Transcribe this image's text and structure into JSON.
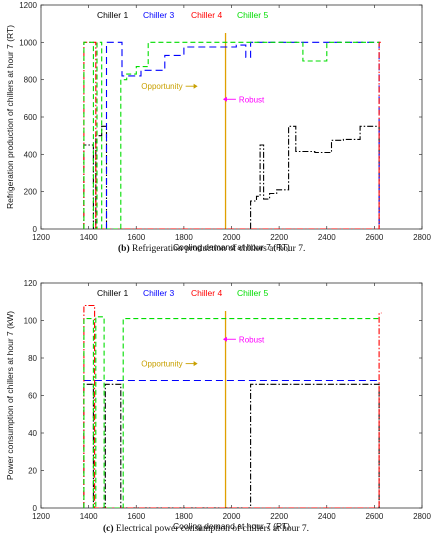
{
  "charts": [
    {
      "type": "line",
      "xlabel": "Cooling demand at hour 7 (RT)",
      "ylabel": "Refrigeration production of chillers at hour 7 (RT)",
      "xlim": [
        1200,
        2800
      ],
      "ylim": [
        0,
        1200
      ],
      "xticks": [
        "1200",
        "1400",
        "1600",
        "1800",
        "2000",
        "2200",
        "2400",
        "2600",
        "2800"
      ],
      "yticks": [
        "0",
        "200",
        "400",
        "600",
        "800",
        "1000",
        "1200"
      ],
      "caption_tag": "(b)",
      "caption_text": " Refrigeration production of chillers at hour 7.",
      "legend": [
        {
          "label": "Chiller 1",
          "color": "#000000"
        },
        {
          "label": "Chiller 3",
          "color": "#0000ff"
        },
        {
          "label": "Chiller 4",
          "color": "#ff0000"
        },
        {
          "label": "Chiller 5",
          "color": "#00dd00"
        }
      ],
      "annotations": [
        {
          "text": "Opportunity",
          "color": "#c8a000",
          "x": 1820,
          "y": 765,
          "arrow": "right"
        },
        {
          "text": "Robust",
          "color": "#ff00ff",
          "x": 1985,
          "y": 695,
          "arrow": "left"
        }
      ],
      "vline": {
        "x": 1975,
        "color": "#e0a000"
      },
      "series": [
        {
          "name": "Chiller 1",
          "color": "#000000",
          "dash": "6,2,1.5,2",
          "points": [
            [
              1380,
              0
            ],
            [
              1380,
              450
            ],
            [
              1420,
              450
            ],
            [
              1420,
              0
            ],
            [
              1430,
              0
            ],
            [
              1430,
              500
            ],
            [
              1455,
              500
            ],
            [
              1455,
              550
            ],
            [
              1475,
              550
            ],
            [
              1475,
              0
            ],
            [
              2080,
              0
            ],
            [
              2080,
              150
            ],
            [
              2105,
              150
            ],
            [
              2105,
              175
            ],
            [
              2120,
              175
            ],
            [
              2120,
              450
            ],
            [
              2135,
              450
            ],
            [
              2135,
              160
            ],
            [
              2160,
              160
            ],
            [
              2160,
              190
            ],
            [
              2190,
              190
            ],
            [
              2190,
              210
            ],
            [
              2240,
              210
            ],
            [
              2240,
              550
            ],
            [
              2270,
              550
            ],
            [
              2270,
              415
            ],
            [
              2350,
              415
            ],
            [
              2350,
              410
            ],
            [
              2420,
              410
            ],
            [
              2420,
              475
            ],
            [
              2470,
              475
            ],
            [
              2470,
              480
            ],
            [
              2540,
              480
            ],
            [
              2540,
              550
            ],
            [
              2620,
              550
            ],
            [
              2620,
              0
            ]
          ]
        },
        {
          "name": "Chiller 3",
          "color": "#0000ff",
          "dash": "7,4",
          "points": [
            [
              1475,
              0
            ],
            [
              1475,
              1000
            ],
            [
              1540,
              1000
            ],
            [
              1540,
              820
            ],
            [
              1620,
              820
            ],
            [
              1620,
              850
            ],
            [
              1720,
              850
            ],
            [
              1720,
              930
            ],
            [
              1800,
              930
            ],
            [
              1800,
              975
            ],
            [
              2020,
              975
            ],
            [
              2020,
              985
            ],
            [
              2060,
              985
            ],
            [
              2060,
              920
            ],
            [
              2080,
              920
            ],
            [
              2080,
              1000
            ],
            [
              2620,
              1000
            ],
            [
              2620,
              0
            ]
          ]
        },
        {
          "name": "Chiller 4",
          "color": "#ff0000",
          "dash": "6,2,1.5,2",
          "points": [
            [
              1380,
              0
            ],
            [
              1380,
              1000
            ],
            [
              1430,
              1000
            ],
            [
              1430,
              0
            ],
            [
              2620,
              0
            ],
            [
              2620,
              1000
            ],
            [
              2630,
              1000
            ]
          ]
        },
        {
          "name": "Chiller 5",
          "color": "#00dd00",
          "dash": "5,3",
          "points": [
            [
              1380,
              0
            ],
            [
              1380,
              1000
            ],
            [
              1420,
              1000
            ],
            [
              1420,
              0
            ],
            [
              1435,
              0
            ],
            [
              1435,
              1000
            ],
            [
              1455,
              1000
            ],
            [
              1455,
              0
            ],
            [
              1535,
              0
            ],
            [
              1535,
              800
            ],
            [
              1560,
              800
            ],
            [
              1560,
              830
            ],
            [
              1600,
              830
            ],
            [
              1600,
              870
            ],
            [
              1650,
              870
            ],
            [
              1650,
              1000
            ],
            [
              2300,
              1000
            ],
            [
              2300,
              900
            ],
            [
              2400,
              900
            ],
            [
              2400,
              1000
            ],
            [
              2620,
              1000
            ]
          ]
        }
      ]
    },
    {
      "type": "line",
      "xlabel": "Cooling demand at hour 7 (RT)",
      "ylabel": "Power consumption of chillers at hour 7 (kW)",
      "xlim": [
        1200,
        2800
      ],
      "ylim": [
        0,
        120
      ],
      "xticks": [
        "1200",
        "1400",
        "1600",
        "1800",
        "2000",
        "2200",
        "2400",
        "2600",
        "2800"
      ],
      "yticks": [
        "0",
        "20",
        "40",
        "60",
        "80",
        "100",
        "120"
      ],
      "caption_tag": "(c)",
      "caption_text": " Electrical power consumption of chillers at hour 7.",
      "legend": [
        {
          "label": "Chiller 1",
          "color": "#000000"
        },
        {
          "label": "Chiller 3",
          "color": "#0000ff"
        },
        {
          "label": "Chiller 4",
          "color": "#ff0000"
        },
        {
          "label": "Chiller 5",
          "color": "#00dd00"
        }
      ],
      "annotations": [
        {
          "text": "Opportunity",
          "color": "#c8a000",
          "x": 1820,
          "y": 77,
          "arrow": "right"
        },
        {
          "text": "Robust",
          "color": "#ff00ff",
          "x": 1985,
          "y": 90,
          "arrow": "left"
        }
      ],
      "vline": {
        "x": 1975,
        "color": "#e0a000"
      },
      "series": [
        {
          "name": "Chiller 1",
          "color": "#000000",
          "dash": "6,2,1.5,2",
          "points": [
            [
              1380,
              0
            ],
            [
              1380,
              66
            ],
            [
              1420,
              66
            ],
            [
              1420,
              0
            ],
            [
              1470,
              0
            ],
            [
              1470,
              66
            ],
            [
              1535,
              66
            ],
            [
              1535,
              0
            ],
            [
              2080,
              0
            ],
            [
              2080,
              66
            ],
            [
              2620,
              66
            ],
            [
              2620,
              0
            ]
          ]
        },
        {
          "name": "Chiller 3",
          "color": "#0000ff",
          "dash": "7,4",
          "points": [
            [
              1380,
              68
            ],
            [
              2620,
              68
            ]
          ]
        },
        {
          "name": "Chiller 4",
          "color": "#ff0000",
          "dash": "6,2,1.5,2",
          "points": [
            [
              1380,
              0
            ],
            [
              1380,
              108
            ],
            [
              1425,
              108
            ],
            [
              1425,
              0
            ],
            [
              2620,
              0
            ],
            [
              2620,
              104
            ],
            [
              2630,
              104
            ]
          ]
        },
        {
          "name": "Chiller 5",
          "color": "#00dd00",
          "dash": "5,3",
          "points": [
            [
              1380,
              0
            ],
            [
              1380,
              101
            ],
            [
              1420,
              101
            ],
            [
              1420,
              0
            ],
            [
              1430,
              0
            ],
            [
              1430,
              102
            ],
            [
              1465,
              102
            ],
            [
              1465,
              0
            ],
            [
              1545,
              0
            ],
            [
              1545,
              101
            ],
            [
              2620,
              101
            ]
          ]
        }
      ]
    }
  ]
}
